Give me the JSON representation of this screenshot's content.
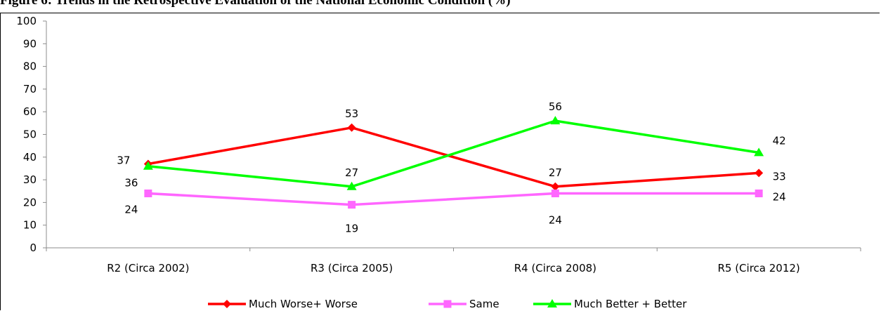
{
  "figure_title": "Figure 6: Trends in the Retrospective Evaluation of the National Economic Condition (%)",
  "chart_data": {
    "type": "line",
    "title": "Figure 6: Trends in the Retrospective Evaluation of the National Economic Condition (%)",
    "xlabel": "",
    "ylabel": "",
    "ylim": [
      0,
      100
    ],
    "yticks": [
      0,
      10,
      20,
      30,
      40,
      50,
      60,
      70,
      80,
      90,
      100
    ],
    "categories": [
      "R2 (Circa 2002)",
      "R3 (Circa 2005)",
      "R4 (Circa 2008)",
      "R5 (Circa 2012)"
    ],
    "grid": false,
    "legend_position": "bottom",
    "series": [
      {
        "name": "Much Worse+ Worse",
        "values": [
          37,
          53,
          27,
          33
        ],
        "color": "#ff0000",
        "marker": "diamond"
      },
      {
        "name": "Same",
        "values": [
          24,
          19,
          24,
          24
        ],
        "color": "#ff66ff",
        "marker": "square"
      },
      {
        "name": "Much Better + Better",
        "values": [
          36,
          27,
          56,
          42
        ],
        "color": "#00ff00",
        "marker": "triangle"
      }
    ]
  }
}
